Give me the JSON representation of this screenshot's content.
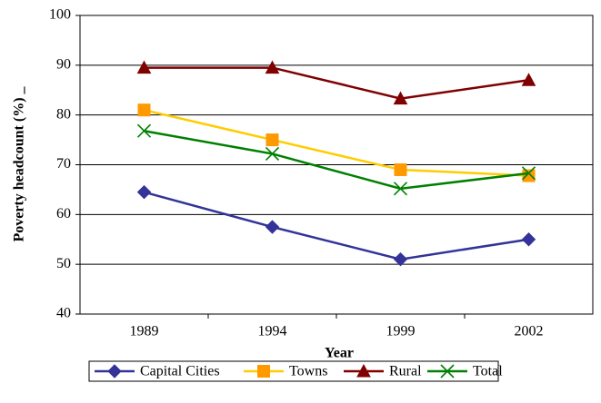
{
  "chart_data": {
    "type": "line",
    "y_label": "Poverty headcount (%) _",
    "x_label": "Year",
    "categories": [
      "1989",
      "1994",
      "1999",
      "2002"
    ],
    "series": [
      {
        "name": "Capital Cities",
        "color": "#333399",
        "marker_color": "#333399",
        "marker": "diamond",
        "values": [
          64.5,
          57.5,
          51,
          55
        ]
      },
      {
        "name": "Towns",
        "color": "#FFCC00",
        "marker_color": "#FF9900",
        "marker": "square",
        "values": [
          81,
          75,
          69,
          67.8
        ]
      },
      {
        "name": "Rural",
        "color": "#800000",
        "marker_color": "#800000",
        "marker": "triangle",
        "values": [
          89.5,
          89.5,
          83.3,
          87
        ]
      },
      {
        "name": "Total",
        "color": "#008000",
        "marker_color": "#008000",
        "marker": "x",
        "values": [
          76.8,
          72.2,
          65.2,
          68.3
        ]
      }
    ],
    "ylim": [
      40,
      100
    ],
    "yticks": [
      40,
      50,
      60,
      70,
      80,
      90,
      100
    ],
    "grid": true,
    "legend": "bottom"
  }
}
